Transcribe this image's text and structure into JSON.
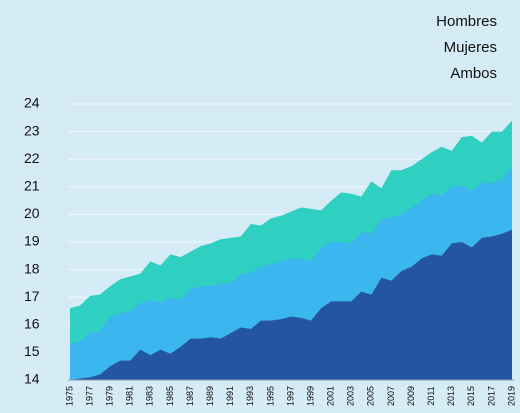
{
  "chart_data": {
    "type": "area",
    "categories": [
      "1975",
      null,
      "1977",
      null,
      "1979",
      null,
      "1981",
      null,
      "1983",
      null,
      "1985",
      null,
      "1987",
      null,
      "1989",
      null,
      "1991",
      null,
      "1993",
      null,
      "1995",
      null,
      "1997",
      null,
      "1999",
      null,
      "2001",
      null,
      "2003",
      null,
      "2005",
      null,
      "2007",
      null,
      "2009",
      null,
      "2011",
      null,
      "2013",
      null,
      "2015",
      null,
      "2017",
      null,
      "2019"
    ],
    "series": [
      {
        "name": "Hombres",
        "color": "#2fd0c1",
        "values": [
          16.6,
          16.7,
          17.05,
          17.1,
          17.4,
          17.65,
          17.75,
          17.85,
          18.3,
          18.15,
          18.55,
          18.45,
          18.65,
          18.85,
          18.95,
          19.1,
          19.15,
          19.2,
          19.65,
          19.6,
          19.85,
          19.95,
          20.1,
          20.25,
          20.2,
          20.15,
          20.5,
          20.8,
          20.75,
          20.65,
          21.2,
          20.95,
          21.6,
          21.6,
          21.75,
          22.0,
          22.25,
          22.45,
          22.3,
          22.8,
          22.85,
          22.6,
          23.0,
          23.0,
          23.4
        ]
      },
      {
        "name": "Mujeres",
        "color": "#3cb6ef",
        "values": [
          15.3,
          15.4,
          15.7,
          15.8,
          16.3,
          16.4,
          16.5,
          16.8,
          16.9,
          16.8,
          17.0,
          16.9,
          17.3,
          17.4,
          17.4,
          17.5,
          17.5,
          17.85,
          17.9,
          18.1,
          18.2,
          18.3,
          18.4,
          18.4,
          18.3,
          18.8,
          19.0,
          19.0,
          18.95,
          19.35,
          19.3,
          19.85,
          19.9,
          20.0,
          20.25,
          20.5,
          20.75,
          20.7,
          21.0,
          21.05,
          20.85,
          21.15,
          21.15,
          21.25,
          21.7
        ]
      },
      {
        "name": "Ambos",
        "color": "#2355a1",
        "values": [
          14.0,
          14.05,
          14.1,
          14.2,
          14.5,
          14.7,
          14.7,
          15.1,
          14.9,
          15.1,
          14.95,
          15.2,
          15.5,
          15.5,
          15.55,
          15.5,
          15.7,
          15.9,
          15.85,
          16.15,
          16.15,
          16.2,
          16.3,
          16.25,
          16.15,
          16.6,
          16.85,
          16.85,
          16.85,
          17.2,
          17.1,
          17.7,
          17.6,
          17.95,
          18.1,
          18.4,
          18.55,
          18.5,
          18.95,
          19.0,
          18.8,
          19.15,
          19.2,
          19.3,
          19.45
        ]
      }
    ],
    "ylim": [
      14,
      24
    ],
    "yticks": [
      14,
      15,
      16,
      17,
      18,
      19,
      20,
      21,
      22,
      23,
      24
    ],
    "grid": true,
    "legend": "top-right"
  }
}
